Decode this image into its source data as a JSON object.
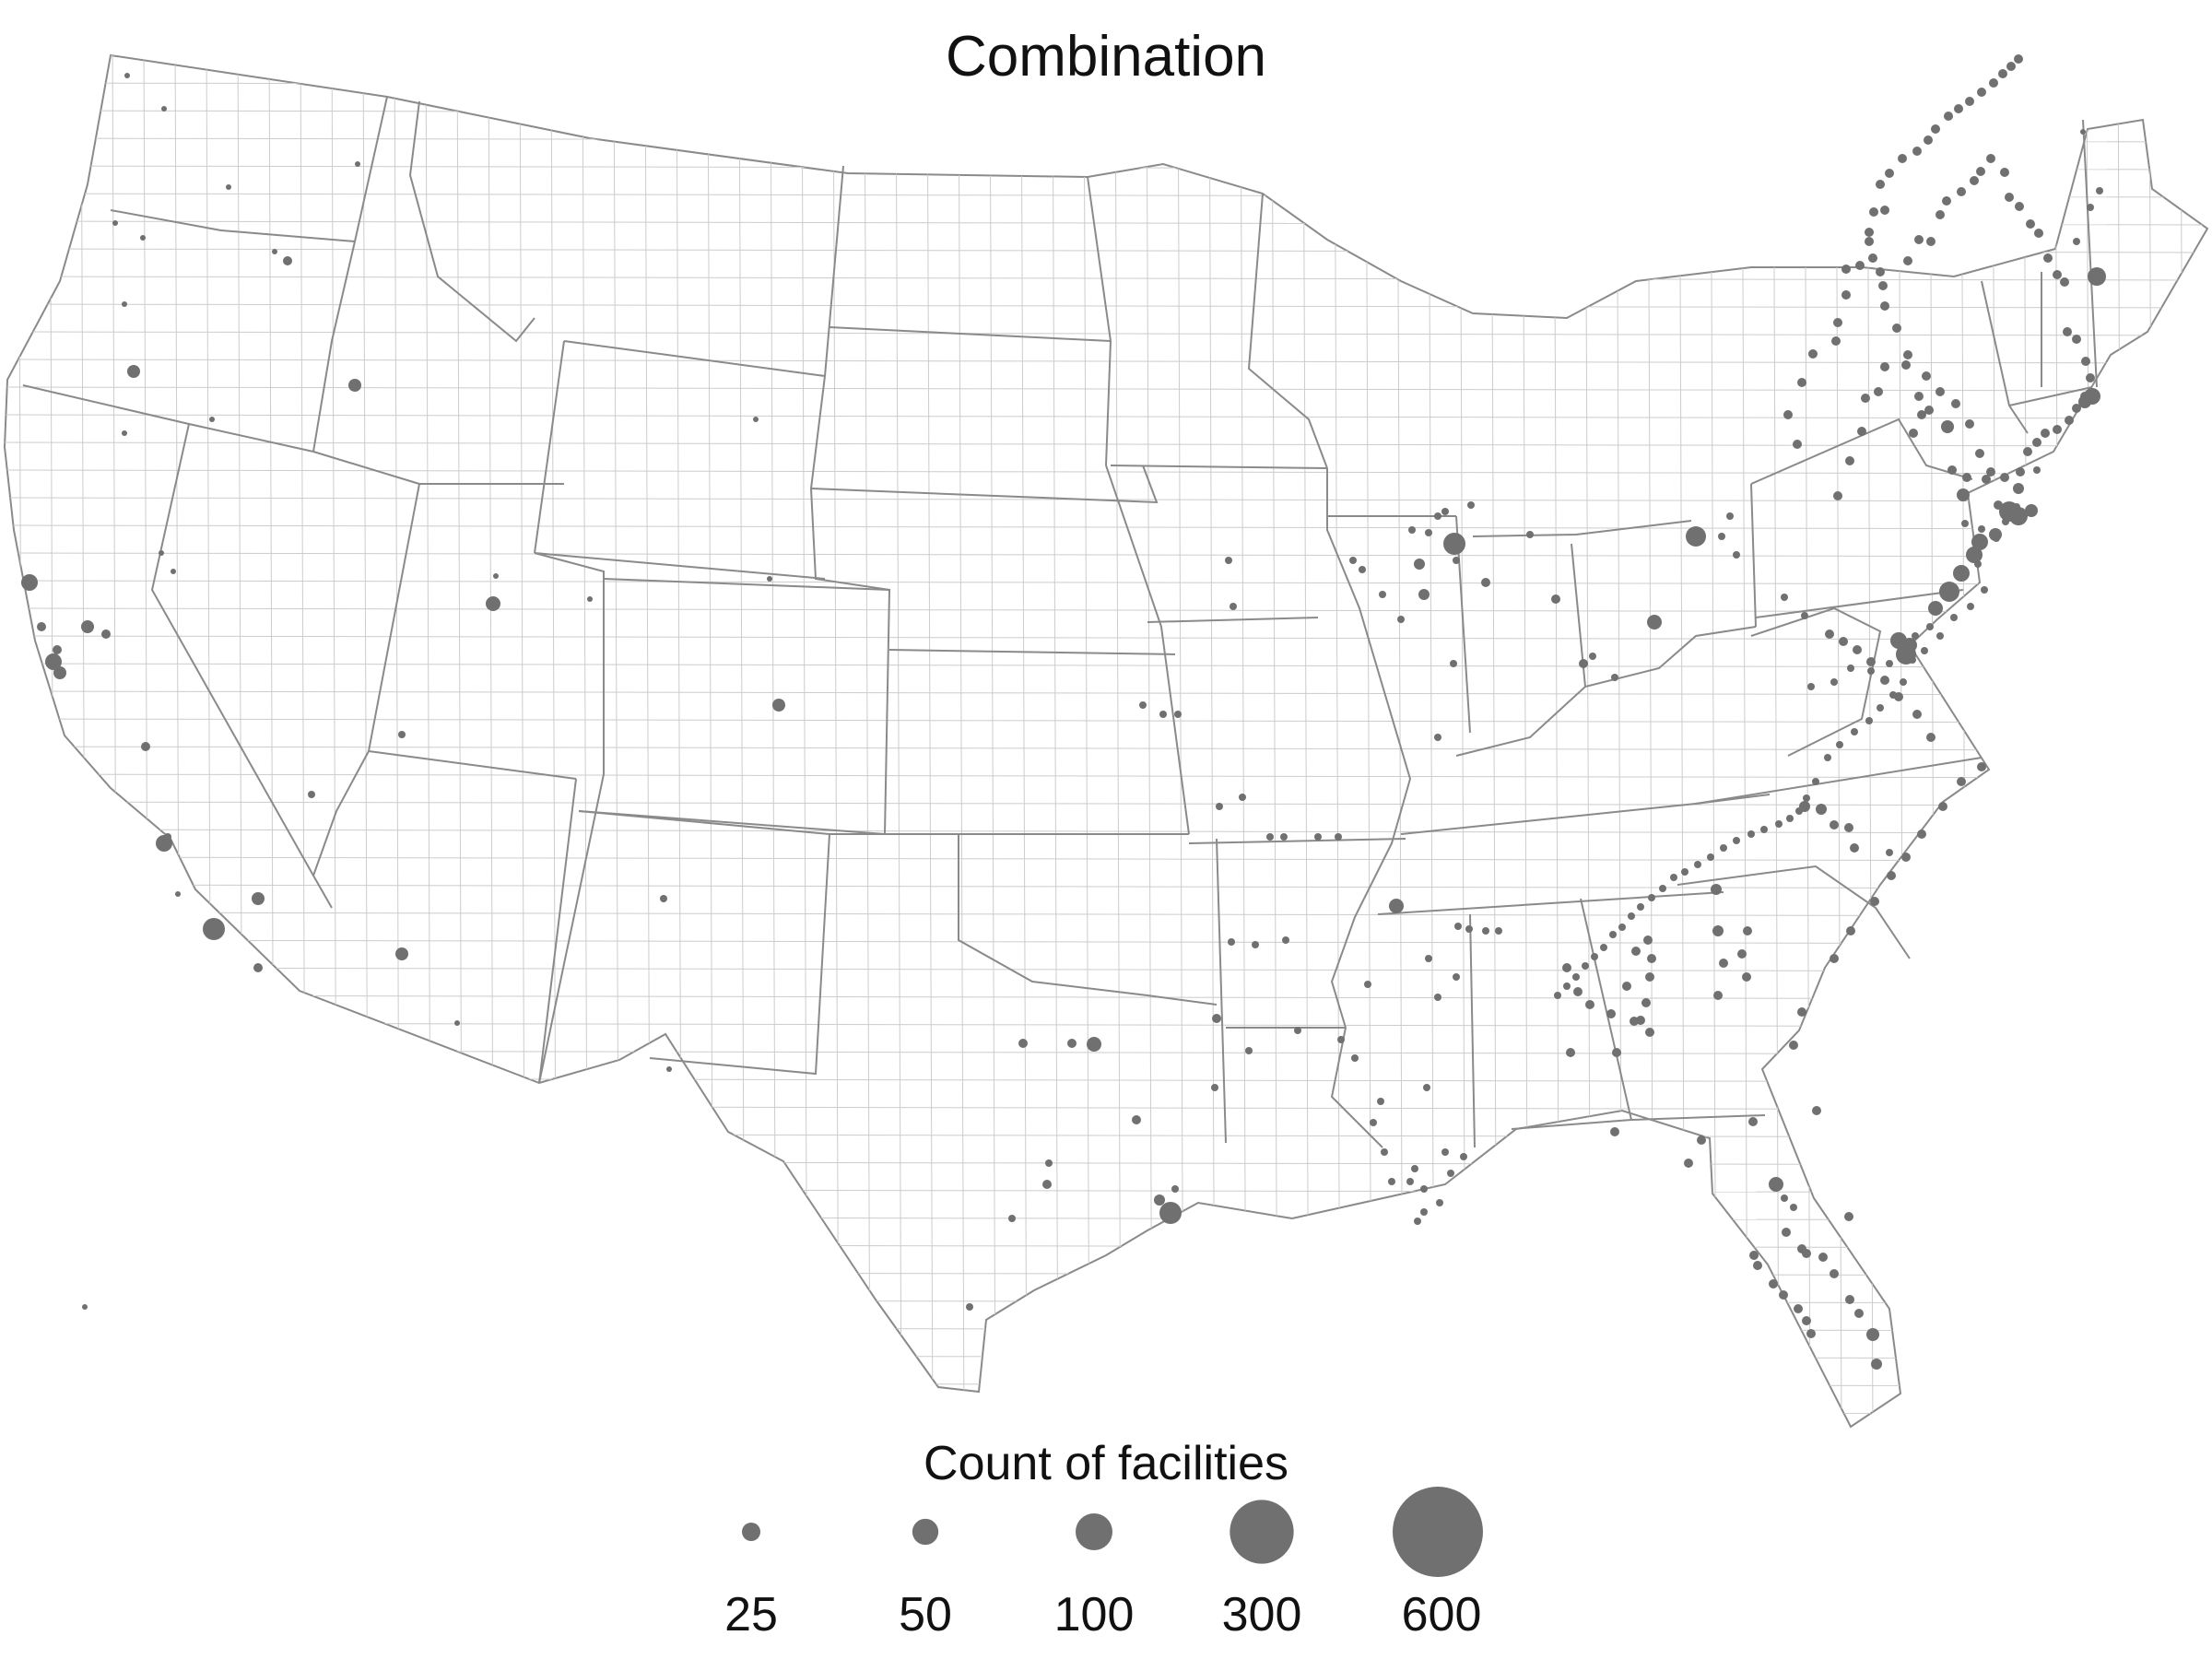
{
  "title": "Combination",
  "legend": {
    "title": "Count of facilities",
    "items": [
      {
        "label": "25",
        "value": 25
      },
      {
        "label": "50",
        "value": 50
      },
      {
        "label": "100",
        "value": 100
      },
      {
        "label": "300",
        "value": 300
      },
      {
        "label": "600",
        "value": 600
      }
    ]
  },
  "colors": {
    "bubble": "#707070",
    "state_border": "#8a8a8a",
    "county_border": "#cccccc",
    "text": "#111111"
  },
  "map": {
    "region": "contiguous-united-states",
    "projection": "albers-usa"
  }
}
